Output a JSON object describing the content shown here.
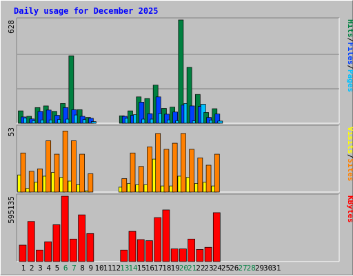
{
  "title": "Daily usage for December 2025",
  "colors": {
    "hits": "#008040",
    "files": "#0040ff",
    "pages": "#00c0ff",
    "visits": "#ffff00",
    "sites": "#ff8000",
    "kbytes": "#ff0000",
    "weekend": "#008040",
    "weekday": "#000000"
  },
  "chart_data": [
    {
      "type": "bar",
      "panel": "hits-files-pages",
      "max_label": "628",
      "ylim": [
        0,
        628
      ],
      "legend": [
        "Pages",
        "/",
        "Files",
        "/",
        "Hits"
      ],
      "categories": [
        "1",
        "2",
        "3",
        "4",
        "5",
        "6",
        "7",
        "8",
        "9",
        "10",
        "11",
        "12",
        "13",
        "14",
        "15",
        "16",
        "17",
        "18",
        "19",
        "20",
        "21",
        "22",
        "23",
        "24",
        "25",
        "26",
        "27",
        "28",
        "29",
        "30",
        "31"
      ],
      "weekend_days": [
        "6",
        "7",
        "13",
        "14",
        "20",
        "21",
        "27",
        "28"
      ],
      "series": [
        {
          "name": "Hits",
          "values": [
            75,
            42,
            95,
            105,
            72,
            120,
            410,
            82,
            35,
            0,
            0,
            0,
            45,
            75,
            160,
            150,
            232,
            90,
            98,
            628,
            340,
            175,
            65,
            88,
            0,
            0,
            0,
            0,
            0,
            0,
            0
          ]
        },
        {
          "name": "Files",
          "values": [
            38,
            26,
            72,
            80,
            48,
            95,
            82,
            42,
            30,
            0,
            0,
            0,
            42,
            48,
            128,
            58,
            160,
            55,
            68,
            110,
            105,
            102,
            35,
            56,
            0,
            0,
            0,
            0,
            0,
            0,
            0
          ]
        },
        {
          "name": "Pages",
          "values": [
            32,
            15,
            20,
            20,
            22,
            25,
            50,
            22,
            10,
            0,
            0,
            0,
            30,
            52,
            25,
            25,
            60,
            20,
            15,
            120,
            14,
            115,
            18,
            13,
            0,
            0,
            0,
            0,
            0,
            0,
            0
          ]
        }
      ]
    },
    {
      "type": "bar",
      "panel": "visits-sites",
      "max_label": "53",
      "ylim": [
        0,
        53
      ],
      "legend": [
        "Sites",
        "/",
        "Visits"
      ],
      "categories": [
        "1",
        "2",
        "3",
        "4",
        "5",
        "6",
        "7",
        "8",
        "9",
        "10",
        "11",
        "12",
        "13",
        "14",
        "15",
        "16",
        "17",
        "18",
        "19",
        "20",
        "21",
        "22",
        "23",
        "24",
        "25",
        "26",
        "27",
        "28",
        "29",
        "30",
        "31"
      ],
      "series": [
        {
          "name": "Visits",
          "values": [
            14,
            3,
            8,
            13,
            16,
            12,
            9,
            6,
            1,
            0,
            0,
            0,
            4,
            7,
            6,
            6,
            27,
            5,
            5,
            13,
            12,
            7,
            8,
            5,
            0,
            0,
            0,
            0,
            0,
            0,
            0
          ]
        },
        {
          "name": "Sites",
          "values": [
            32,
            17,
            19,
            42,
            31,
            50,
            42,
            31,
            15,
            0,
            0,
            0,
            11,
            32,
            21,
            37,
            48,
            35,
            40,
            48,
            35,
            28,
            22,
            31,
            0,
            0,
            0,
            0,
            0,
            0,
            0
          ]
        }
      ]
    },
    {
      "type": "bar",
      "panel": "kbytes",
      "max_label": "595135",
      "ylim": [
        0,
        595135
      ],
      "legend": [
        "KBytes"
      ],
      "categories": [
        "1",
        "2",
        "3",
        "4",
        "5",
        "6",
        "7",
        "8",
        "9",
        "10",
        "11",
        "12",
        "13",
        "14",
        "15",
        "16",
        "17",
        "18",
        "19",
        "20",
        "21",
        "22",
        "23",
        "24",
        "25",
        "26",
        "27",
        "28",
        "29",
        "30",
        "31"
      ],
      "series": [
        {
          "name": "KBytes",
          "values": [
            150000,
            365000,
            105000,
            180000,
            335000,
            595135,
            205000,
            425000,
            255000,
            0,
            0,
            0,
            105000,
            275000,
            200000,
            190000,
            400000,
            470000,
            115000,
            115000,
            205000,
            110000,
            130000,
            445000,
            0,
            0,
            0,
            0,
            0,
            0,
            0
          ]
        }
      ]
    }
  ]
}
